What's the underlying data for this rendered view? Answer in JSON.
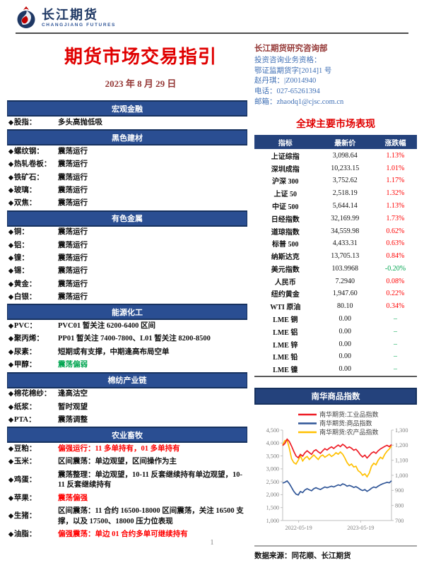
{
  "page": {
    "number": "1"
  },
  "colors": {
    "accent-blue": "#24427C",
    "bar-blue": "#2A4E92",
    "bar-border": "#16315E",
    "title-red": "#E00000",
    "maroon": "#943634",
    "contact-blue": "#3F6FB5",
    "up-red": "#FF0000",
    "down-green": "#00A550"
  },
  "header": {
    "logo_cn": "长江期货",
    "logo_en": "CHANGJIANG FUTURES",
    "title": "期货市场交易指引",
    "date": "2023 年 8 月 29 日",
    "dept": "长江期货研究咨询部",
    "contact_lines": [
      "投资咨询业务资格：",
      "鄂证监期货字[2014]1 号",
      "赵丹琪：|Z0014940",
      "电话：027-65261394",
      "邮箱：zhaodq1@cjsc.com.cn"
    ]
  },
  "guide_sections": [
    {
      "title": "宏观金融",
      "rows": [
        {
          "label": "股指",
          "value": "多头高抛低吸",
          "color": "black"
        }
      ]
    },
    {
      "title": "黑色建材",
      "rows": [
        {
          "label": "螺纹钢",
          "value": "震荡运行",
          "color": "black"
        },
        {
          "label": "热轧卷板",
          "value": "震荡运行",
          "color": "black"
        },
        {
          "label": "铁矿石",
          "value": "震荡运行",
          "color": "black"
        },
        {
          "label": "玻璃",
          "value": "震荡运行",
          "color": "black"
        },
        {
          "label": "双焦",
          "value": "震荡运行",
          "color": "black"
        }
      ]
    },
    {
      "title": "有色金属",
      "rows": [
        {
          "label": "铜",
          "value": "震荡运行",
          "color": "black"
        },
        {
          "label": "铝",
          "value": "震荡运行",
          "color": "black"
        },
        {
          "label": "镍",
          "value": "震荡运行",
          "color": "black"
        },
        {
          "label": "锡",
          "value": "震荡运行",
          "color": "black"
        },
        {
          "label": "黄金",
          "value": "震荡运行",
          "color": "black"
        },
        {
          "label": "白银",
          "value": "震荡运行",
          "color": "black"
        }
      ]
    },
    {
      "title": "能源化工",
      "rows": [
        {
          "label": "PVC",
          "value": "PVC01 暂关注 6200-6400 区间",
          "color": "black"
        },
        {
          "label": "聚丙烯",
          "value": "PP01 暂关注 7400-7800、L01 暂关注 8200-8500",
          "color": "black"
        },
        {
          "label": "尿素",
          "value": "短期或有支撑，中期逢高布局空单",
          "color": "black"
        },
        {
          "label": "甲醇",
          "value": "震荡偏弱",
          "color": "green"
        }
      ]
    },
    {
      "title": "棉纺产业链",
      "rows": [
        {
          "label": "棉花棉纱",
          "value": "逢高沽空",
          "color": "black"
        },
        {
          "label": "纸浆",
          "value": "暂时观望",
          "color": "black"
        },
        {
          "label": "PTA",
          "value": "震荡调整",
          "color": "black"
        }
      ]
    },
    {
      "title": "农业畜牧",
      "rows": [
        {
          "label": "豆粕",
          "value": "偏强运行：11 多单持有，01 多单持有",
          "color": "red"
        },
        {
          "label": "玉米",
          "value": "区间震荡：单边观望，区间操作为主",
          "color": "black"
        },
        {
          "label": "鸡蛋",
          "value": "震荡整理：单边观望，10-11 反套继续持有单边观望，10-11 反套继续持有",
          "color": "black"
        },
        {
          "label": "苹果",
          "value": "震荡偏强",
          "color": "red"
        },
        {
          "label": "生猪",
          "value": "区间震荡：11 合约 16500-18000 区间震荡，关注 16500 支撑，以及 17500、18000 压力位表现",
          "color": "black"
        },
        {
          "label": "油脂",
          "value": "偏强震荡：单边 01 合约多单可继续持有",
          "color": "red"
        }
      ]
    }
  ],
  "market_table": {
    "title": "全球主要市场表现",
    "headers": [
      "指标",
      "最新价",
      "涨跌幅"
    ],
    "rows": [
      {
        "name": "上证综指",
        "price": "3,098.64",
        "change": "1.13%",
        "dir": "red"
      },
      {
        "name": "深圳成指",
        "price": "10,233.15",
        "change": "1.01%",
        "dir": "red"
      },
      {
        "name": "沪深 300",
        "price": "3,752.62",
        "change": "1.17%",
        "dir": "red"
      },
      {
        "name": "上证 50",
        "price": "2,518.19",
        "change": "1.32%",
        "dir": "red"
      },
      {
        "name": "中证 500",
        "price": "5,644.14",
        "change": "1.13%",
        "dir": "red"
      },
      {
        "name": "日经指数",
        "price": "32,169.99",
        "change": "1.73%",
        "dir": "red"
      },
      {
        "name": "道琼指数",
        "price": "34,559.98",
        "change": "0.62%",
        "dir": "red"
      },
      {
        "name": "标普 500",
        "price": "4,433.31",
        "change": "0.63%",
        "dir": "red"
      },
      {
        "name": "纳斯达克",
        "price": "13,705.13",
        "change": "0.84%",
        "dir": "red"
      },
      {
        "name": "美元指数",
        "price": "103.9968",
        "change": "-0.20%",
        "dir": "green"
      },
      {
        "name": "人民币",
        "price": "7.2940",
        "change": "0.08%",
        "dir": "red"
      },
      {
        "name": "纽约黄金",
        "price": "1,947.60",
        "change": "0.22%",
        "dir": "red"
      },
      {
        "name": "WTI 原油",
        "price": "80.10",
        "change": "0.34%",
        "dir": "red"
      },
      {
        "name": "LME 铜",
        "price": "0.00",
        "change": "–",
        "dir": "green"
      },
      {
        "name": "LME 铝",
        "price": "0.00",
        "change": "–",
        "dir": "green"
      },
      {
        "name": "LME 锌",
        "price": "0.00",
        "change": "–",
        "dir": "green"
      },
      {
        "name": "LME 铅",
        "price": "0.00",
        "change": "–",
        "dir": "green"
      },
      {
        "name": "LME 镍",
        "price": "0.00",
        "change": "–",
        "dir": "green"
      }
    ]
  },
  "nanhua": {
    "title": "南华商品指数",
    "source": "数据来源：同花顺、长江期货"
  },
  "chart_data": {
    "type": "line",
    "title": "南华商品指数",
    "legend_position": "top",
    "grid": false,
    "left_axis": {
      "min": 1000,
      "max": 4500,
      "step": 500,
      "labels": [
        "4,500",
        "4,000",
        "3,500",
        "3,000",
        "2,500",
        "2,000",
        "1,500",
        "1,000"
      ]
    },
    "right_axis": {
      "min": 700,
      "max": 1300,
      "step": 100,
      "labels": [
        "1,300",
        "1,200",
        "1,100",
        "1,000",
        "900",
        "800",
        "700"
      ]
    },
    "x_ticks": [
      {
        "label": "2022-05-19",
        "pos": 0.03
      },
      {
        "label": "2023-05-19",
        "pos": 0.6
      }
    ],
    "series": [
      {
        "name": "南华期货:工业品指数",
        "color": "#EE1C25",
        "axis": "left",
        "values": [
          3900,
          3980,
          4150,
          4060,
          3880,
          3680,
          3500,
          3430,
          3560,
          3490,
          3620,
          3700,
          3630,
          3560,
          3690,
          3740,
          3660,
          3600,
          3700,
          3780,
          3730,
          3800,
          3850,
          3790,
          3860,
          3920,
          3860,
          3950,
          3890,
          3800,
          3850,
          3800,
          3720,
          3760,
          3660,
          3540,
          3460,
          3530,
          3420,
          3510,
          3610,
          3660,
          3600,
          3700,
          3770,
          3820,
          3870,
          3910,
          3860,
          3940
        ]
      },
      {
        "name": "南华期货:商品指数",
        "color": "#2F5597",
        "axis": "left",
        "values": [
          2450,
          2480,
          2530,
          2430,
          2280,
          2130,
          2020,
          1990,
          2120,
          2080,
          2180,
          2230,
          2190,
          2150,
          2230,
          2270,
          2230,
          2200,
          2250,
          2300,
          2270,
          2300,
          2330,
          2300,
          2340,
          2380,
          2350,
          2420,
          2390,
          2330,
          2360,
          2330,
          2280,
          2310,
          2260,
          2200,
          2160,
          2200,
          2130,
          2180,
          2250,
          2300,
          2270,
          2330,
          2380,
          2420,
          2450,
          2480,
          2460,
          2540
        ]
      },
      {
        "name": "南华期货:农产品指数",
        "color": "#FFC000",
        "axis": "right",
        "values": [
          1200,
          1230,
          1235,
          1180,
          1110,
          1085,
          1075,
          1100,
          1130,
          1095,
          1115,
          1125,
          1105,
          1120,
          1135,
          1120,
          1105,
          1125,
          1135,
          1120,
          1130,
          1140,
          1125,
          1135,
          1150,
          1140,
          1155,
          1140,
          1115,
          1085,
          1065,
          1075,
          1055,
          1060,
          1030,
          1020,
          1000,
          1010,
          990,
          1015,
          1060,
          1080,
          1070,
          1100,
          1120,
          1110,
          1140,
          1160,
          1175,
          1195
        ]
      }
    ]
  }
}
